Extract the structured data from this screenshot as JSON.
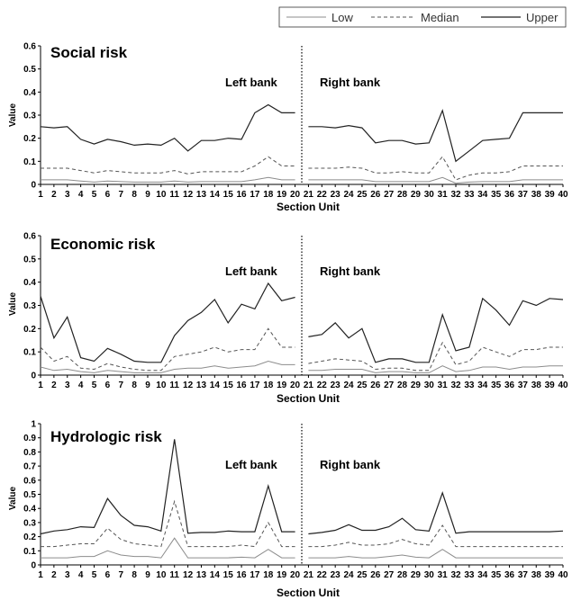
{
  "legend": {
    "items": [
      {
        "label": "Low",
        "style": "solid-thin",
        "color": "#8c8c8c"
      },
      {
        "label": "Median",
        "style": "dashed",
        "color": "#555555"
      },
      {
        "label": "Upper",
        "style": "solid",
        "color": "#222222"
      }
    ],
    "position": "top-right"
  },
  "chart_data": [
    {
      "type": "line",
      "title": "Social risk",
      "xlabel": "Section Unit",
      "ylabel": "Value",
      "ylim": [
        0,
        0.6
      ],
      "yticks": [
        0,
        0.1,
        0.2,
        0.3,
        0.4,
        0.5,
        0.6
      ],
      "ytick_labels": [
        "0",
        "0.1",
        "0.2",
        "0.3",
        "0.4",
        "0.5",
        "0.6"
      ],
      "x": [
        1,
        2,
        3,
        4,
        5,
        6,
        7,
        8,
        9,
        10,
        11,
        12,
        13,
        14,
        15,
        16,
        17,
        18,
        19,
        20,
        21,
        22,
        23,
        24,
        25,
        26,
        27,
        28,
        29,
        30,
        31,
        32,
        33,
        34,
        35,
        36,
        37,
        38,
        39,
        40
      ],
      "annotations": [
        "Left bank",
        "Right bank"
      ],
      "grid": false,
      "series": [
        {
          "name": "Low",
          "values": [
            0.02,
            0.02,
            0.02,
            0.015,
            0.01,
            0.015,
            0.012,
            0.01,
            0.01,
            0.01,
            0.015,
            0.01,
            0.012,
            0.012,
            0.012,
            0.012,
            0.02,
            0.03,
            0.02,
            0.02,
            0.02,
            0.02,
            0.02,
            0.02,
            0.02,
            0.012,
            0.012,
            0.012,
            0.012,
            0.012,
            0.03,
            0.005,
            0.01,
            0.012,
            0.012,
            0.012,
            0.02,
            0.02,
            0.02,
            0.02
          ]
        },
        {
          "name": "Median",
          "values": [
            0.07,
            0.07,
            0.07,
            0.06,
            0.05,
            0.06,
            0.055,
            0.05,
            0.05,
            0.05,
            0.06,
            0.045,
            0.055,
            0.055,
            0.055,
            0.055,
            0.08,
            0.12,
            0.08,
            0.08,
            0.07,
            0.07,
            0.07,
            0.075,
            0.07,
            0.05,
            0.05,
            0.055,
            0.05,
            0.05,
            0.12,
            0.02,
            0.04,
            0.05,
            0.05,
            0.055,
            0.08,
            0.08,
            0.08,
            0.08
          ]
        },
        {
          "name": "Upper",
          "values": [
            0.25,
            0.245,
            0.25,
            0.195,
            0.175,
            0.195,
            0.185,
            0.17,
            0.175,
            0.17,
            0.2,
            0.145,
            0.19,
            0.19,
            0.2,
            0.195,
            0.31,
            0.345,
            0.31,
            0.31,
            0.25,
            0.25,
            0.245,
            0.255,
            0.245,
            0.18,
            0.19,
            0.19,
            0.175,
            0.18,
            0.32,
            0.1,
            0.145,
            0.19,
            0.195,
            0.2,
            0.31,
            0.31,
            0.31,
            0.31
          ]
        }
      ]
    },
    {
      "type": "line",
      "title": "Economic risk",
      "xlabel": "Section Unit",
      "ylabel": "Value",
      "ylim": [
        0,
        0.6
      ],
      "yticks": [
        0,
        0.1,
        0.2,
        0.3,
        0.4,
        0.5,
        0.6
      ],
      "ytick_labels": [
        "0",
        "0.1",
        "0.2",
        "0.3",
        "0.4",
        "0.5",
        "0.6"
      ],
      "x": [
        1,
        2,
        3,
        4,
        5,
        6,
        7,
        8,
        9,
        10,
        11,
        12,
        13,
        14,
        15,
        16,
        17,
        18,
        19,
        20,
        21,
        22,
        23,
        24,
        25,
        26,
        27,
        28,
        29,
        30,
        31,
        32,
        33,
        34,
        35,
        36,
        37,
        38,
        39,
        40
      ],
      "annotations": [
        "Left bank",
        "Right bank"
      ],
      "grid": false,
      "series": [
        {
          "name": "Low",
          "values": [
            0.035,
            0.02,
            0.025,
            0.015,
            0.01,
            0.02,
            0.015,
            0.01,
            0.01,
            0.01,
            0.025,
            0.03,
            0.03,
            0.04,
            0.03,
            0.035,
            0.04,
            0.06,
            0.045,
            0.045,
            0.02,
            0.02,
            0.025,
            0.025,
            0.025,
            0.01,
            0.015,
            0.015,
            0.01,
            0.01,
            0.04,
            0.015,
            0.02,
            0.035,
            0.035,
            0.025,
            0.035,
            0.035,
            0.04,
            0.04
          ]
        },
        {
          "name": "Median",
          "values": [
            0.12,
            0.06,
            0.08,
            0.03,
            0.025,
            0.05,
            0.035,
            0.025,
            0.02,
            0.02,
            0.08,
            0.09,
            0.1,
            0.12,
            0.1,
            0.11,
            0.11,
            0.2,
            0.12,
            0.12,
            0.05,
            0.06,
            0.07,
            0.065,
            0.06,
            0.025,
            0.03,
            0.03,
            0.02,
            0.02,
            0.14,
            0.045,
            0.06,
            0.12,
            0.1,
            0.08,
            0.11,
            0.11,
            0.12,
            0.12
          ]
        },
        {
          "name": "Upper",
          "values": [
            0.34,
            0.16,
            0.25,
            0.075,
            0.06,
            0.115,
            0.09,
            0.06,
            0.055,
            0.055,
            0.17,
            0.235,
            0.27,
            0.325,
            0.225,
            0.305,
            0.285,
            0.395,
            0.32,
            0.335,
            0.165,
            0.175,
            0.225,
            0.16,
            0.2,
            0.055,
            0.07,
            0.07,
            0.055,
            0.055,
            0.26,
            0.105,
            0.12,
            0.33,
            0.28,
            0.215,
            0.32,
            0.3,
            0.33,
            0.325
          ]
        }
      ]
    },
    {
      "type": "line",
      "title": "Hydrologic risk",
      "xlabel": "Section Unit",
      "ylabel": "Value",
      "ylim": [
        0,
        1
      ],
      "yticks": [
        0,
        0.1,
        0.2,
        0.3,
        0.4,
        0.5,
        0.6,
        0.7,
        0.8,
        0.9,
        1
      ],
      "ytick_labels": [
        "0",
        "0.1",
        "0.2",
        "0.3",
        "0.4",
        "0.5",
        "0.6",
        "0.7",
        "0.8",
        "0.9",
        "1"
      ],
      "x": [
        1,
        2,
        3,
        4,
        5,
        6,
        7,
        8,
        9,
        10,
        11,
        12,
        13,
        14,
        15,
        16,
        17,
        18,
        19,
        20,
        21,
        22,
        23,
        24,
        25,
        26,
        27,
        28,
        29,
        30,
        31,
        32,
        33,
        34,
        35,
        36,
        37,
        38,
        39,
        40
      ],
      "annotations": [
        "Left bank",
        "Right bank"
      ],
      "grid": false,
      "series": [
        {
          "name": "Low",
          "values": [
            0.05,
            0.05,
            0.05,
            0.06,
            0.06,
            0.1,
            0.07,
            0.06,
            0.06,
            0.05,
            0.19,
            0.05,
            0.05,
            0.05,
            0.05,
            0.055,
            0.05,
            0.11,
            0.05,
            0.05,
            0.05,
            0.05,
            0.05,
            0.06,
            0.05,
            0.05,
            0.06,
            0.07,
            0.055,
            0.05,
            0.11,
            0.05,
            0.05,
            0.05,
            0.05,
            0.05,
            0.05,
            0.05,
            0.05,
            0.05
          ]
        },
        {
          "name": "Median",
          "values": [
            0.13,
            0.13,
            0.14,
            0.15,
            0.15,
            0.26,
            0.18,
            0.15,
            0.14,
            0.13,
            0.45,
            0.13,
            0.13,
            0.13,
            0.13,
            0.14,
            0.13,
            0.3,
            0.13,
            0.13,
            0.13,
            0.13,
            0.14,
            0.16,
            0.14,
            0.14,
            0.15,
            0.18,
            0.15,
            0.14,
            0.28,
            0.13,
            0.13,
            0.13,
            0.13,
            0.13,
            0.13,
            0.13,
            0.13,
            0.13
          ]
        },
        {
          "name": "Upper",
          "values": [
            0.22,
            0.24,
            0.25,
            0.27,
            0.265,
            0.47,
            0.35,
            0.28,
            0.27,
            0.24,
            0.89,
            0.225,
            0.23,
            0.23,
            0.24,
            0.235,
            0.235,
            0.56,
            0.235,
            0.235,
            0.22,
            0.23,
            0.245,
            0.285,
            0.245,
            0.245,
            0.27,
            0.33,
            0.25,
            0.24,
            0.51,
            0.225,
            0.235,
            0.235,
            0.235,
            0.235,
            0.235,
            0.235,
            0.235,
            0.24
          ]
        }
      ]
    }
  ]
}
